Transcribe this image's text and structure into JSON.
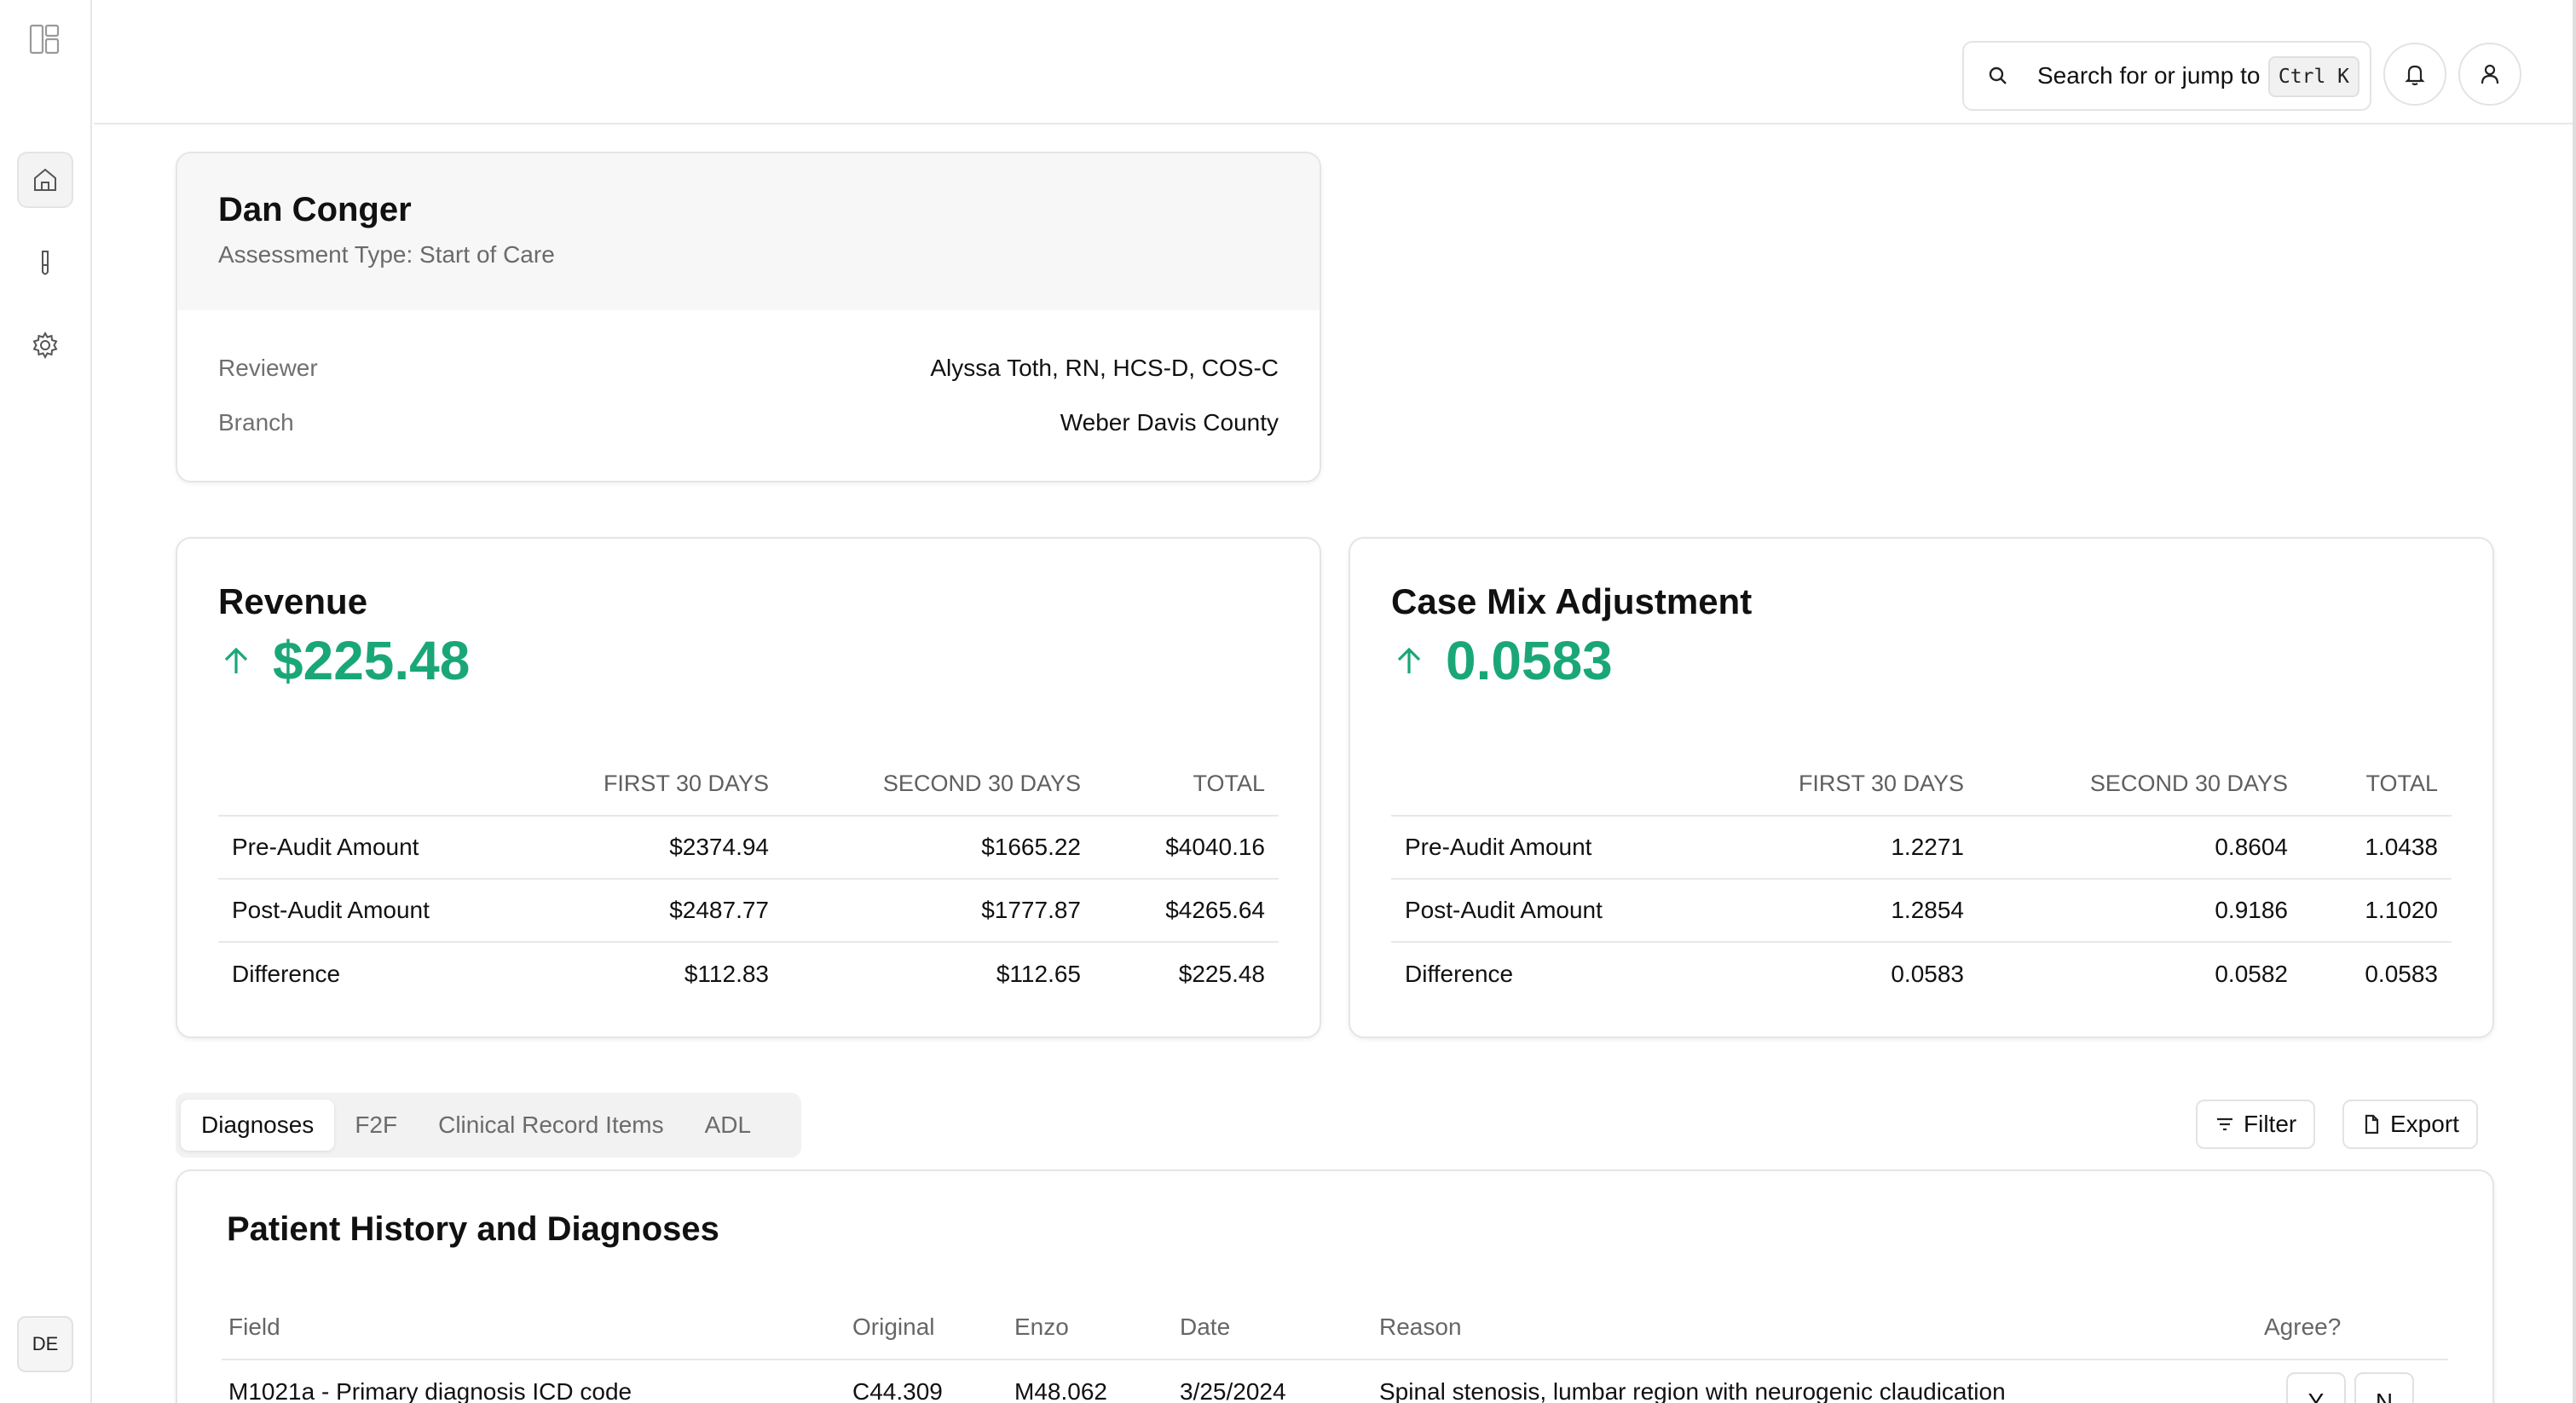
{
  "sidebar": {
    "items": [
      {
        "icon": "home-icon"
      },
      {
        "icon": "test-tube-icon"
      },
      {
        "icon": "gear-icon"
      }
    ],
    "user_initials": "DE"
  },
  "header": {
    "search_placeholder": "Search for or jump to",
    "search_shortcut": "Ctrl K"
  },
  "patient": {
    "name": "Dan Conger",
    "assessment_type": "Assessment Type: Start of Care",
    "reviewer_label": "Reviewer",
    "reviewer_value": "Alyssa Toth, RN, HCS-D, COS-C",
    "branch_label": "Branch",
    "branch_value": "Weber Davis County"
  },
  "revenue": {
    "title": "Revenue",
    "value": "$225.48",
    "columns": [
      "FIRST 30 DAYS",
      "SECOND 30 DAYS",
      "TOTAL"
    ],
    "rows": [
      {
        "label": "Pre-Audit Amount",
        "first": "$2374.94",
        "second": "$1665.22",
        "total": "$4040.16"
      },
      {
        "label": "Post-Audit Amount",
        "first": "$2487.77",
        "second": "$1777.87",
        "total": "$4265.64"
      },
      {
        "label": "Difference",
        "first": "$112.83",
        "second": "$112.65",
        "total": "$225.48"
      }
    ]
  },
  "case_mix": {
    "title": "Case Mix Adjustment",
    "value": "0.0583",
    "columns": [
      "FIRST 30 DAYS",
      "SECOND 30 DAYS",
      "TOTAL"
    ],
    "rows": [
      {
        "label": "Pre-Audit Amount",
        "first": "1.2271",
        "second": "0.8604",
        "total": "1.0438"
      },
      {
        "label": "Post-Audit Amount",
        "first": "1.2854",
        "second": "0.9186",
        "total": "1.1020"
      },
      {
        "label": "Difference",
        "first": "0.0583",
        "second": "0.0582",
        "total": "0.0583"
      }
    ]
  },
  "tabs": [
    "Diagnoses",
    "F2F",
    "Clinical Record Items",
    "ADL"
  ],
  "actions": {
    "filter_label": "Filter",
    "export_label": "Export"
  },
  "history": {
    "title": "Patient History and Diagnoses",
    "columns": [
      "Field",
      "Original",
      "Enzo",
      "Date",
      "Reason",
      "Agree?"
    ],
    "rows": [
      {
        "field": "M1021a - Primary diagnosis ICD code",
        "original": "C44.309",
        "enzo": "M48.062",
        "date": "3/25/2024",
        "reason": "Spinal stenosis, lumbar region with neurogenic claudication",
        "agree_yes": "Y",
        "agree_no": "N"
      }
    ]
  },
  "colors": {
    "positive": "#1aa777",
    "border": "#e5e5e5"
  }
}
